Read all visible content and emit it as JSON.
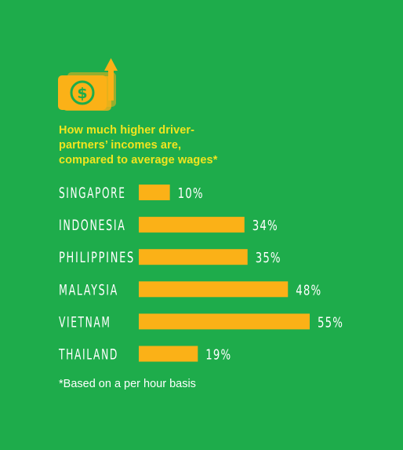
{
  "colors": {
    "background": "#1eac4b",
    "bar": "#fbb117",
    "icon": "#fbb117",
    "heading": "#f2e51f",
    "label": "#ffffff"
  },
  "icon": {
    "name": "money-growth-icon",
    "symbol": "$"
  },
  "heading": {
    "lines": [
      "How much higher driver-",
      "partners’ incomes are,",
      "compared to average wages*"
    ]
  },
  "footnote": "*Based on a per hour basis",
  "chart_data": {
    "type": "bar",
    "orientation": "horizontal",
    "title": "How much higher driver-partners’ incomes are, compared to average wages*",
    "categories": [
      "SINGAPORE",
      "INDONESIA",
      "PHILIPPINES",
      "MALAYSIA",
      "VIETNAM",
      "THAILAND"
    ],
    "values": [
      10,
      34,
      35,
      48,
      55,
      19
    ],
    "value_labels": [
      "10%",
      "34%",
      "35%",
      "48%",
      "55%",
      "19%"
    ],
    "unit": "%",
    "xlim": [
      0,
      55
    ],
    "grid": false,
    "legend": "none"
  }
}
